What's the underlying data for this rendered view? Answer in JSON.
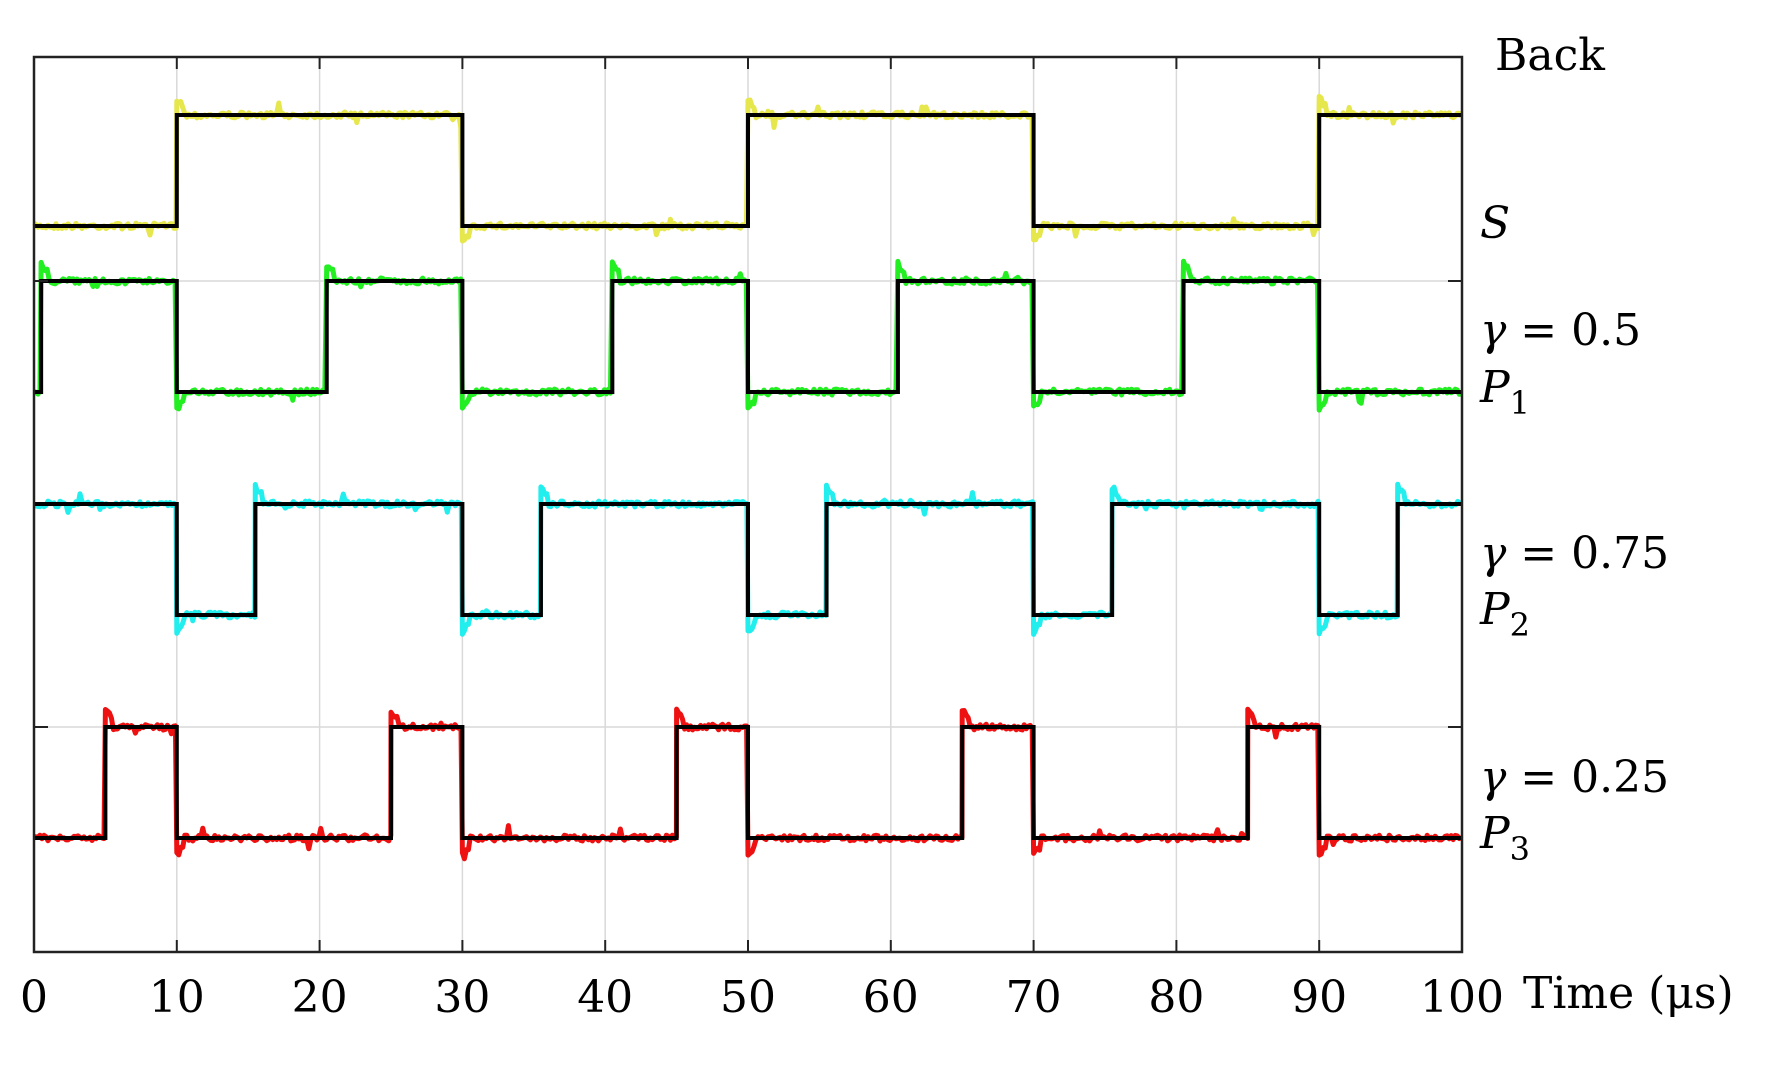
{
  "chart_data": {
    "type": "line",
    "x_axis": {
      "label": "Time (μs)",
      "range": [
        0,
        100
      ],
      "ticks": [
        0,
        10,
        20,
        30,
        40,
        50,
        60,
        70,
        80,
        90,
        100
      ],
      "tick_labels": [
        "0",
        "10",
        "20",
        "30",
        "40",
        "50",
        "60",
        "70",
        "80",
        "90",
        "100"
      ]
    },
    "grid": true,
    "right_labels": [
      {
        "id": "back",
        "text": "Back"
      },
      {
        "id": "s",
        "text": "S"
      },
      {
        "id": "gamma1",
        "text": "γ = 0.5"
      },
      {
        "id": "p1",
        "text": "P",
        "sub": "1"
      },
      {
        "id": "gamma2",
        "text": "γ = 0.75"
      },
      {
        "id": "p2",
        "text": "P",
        "sub": "2"
      },
      {
        "id": "gamma3",
        "text": "γ = 0.25"
      },
      {
        "id": "p3",
        "text": "P",
        "sub": "3"
      }
    ],
    "series": [
      {
        "key": "S",
        "color": "#e6e64d",
        "levels": [
          "low",
          "high"
        ],
        "transitions": [
          0,
          10,
          30,
          50,
          70,
          90,
          100
        ],
        "start_level": "low"
      },
      {
        "key": "P1",
        "color": "#22ee22",
        "duty_cycle": 0.5,
        "transitions": [
          0,
          0.5,
          10,
          20.5,
          30,
          40.5,
          50,
          60.5,
          70,
          80.5,
          90,
          100
        ],
        "start_level": "low"
      },
      {
        "key": "P2",
        "color": "#22eeee",
        "duty_cycle": 0.75,
        "transitions": [
          0,
          10,
          15.5,
          30,
          35.5,
          50,
          55.5,
          70,
          75.5,
          90,
          95.5,
          100
        ],
        "start_level": "high"
      },
      {
        "key": "P3",
        "color": "#ee1111",
        "duty_cycle": 0.25,
        "transitions": [
          0,
          5,
          10,
          25,
          30,
          45,
          50,
          65,
          70,
          85,
          90,
          100
        ],
        "start_level": "low"
      }
    ],
    "reference_line_color": "#000000"
  }
}
